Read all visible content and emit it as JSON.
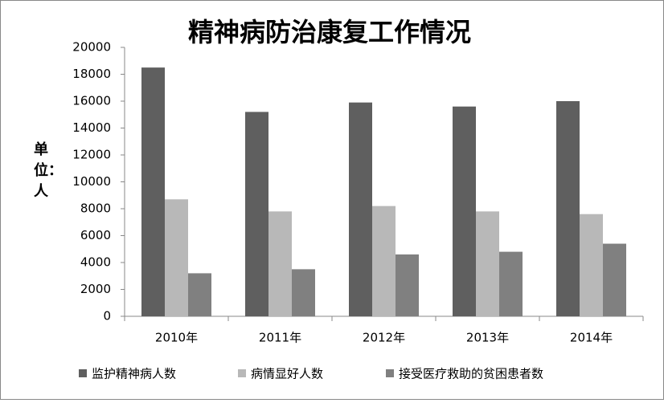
{
  "chart_data": {
    "type": "bar",
    "title": "精神病防治康复工作情况",
    "y_label": "单位：人",
    "categories": [
      "2010年",
      "2011年",
      "2012年",
      "2013年",
      "2014年"
    ],
    "series": [
      {
        "name": "监护精神病人数",
        "color": "#5f5f5f",
        "values": [
          18500,
          15200,
          15900,
          15600,
          16000
        ]
      },
      {
        "name": "病情显好人数",
        "color": "#b8b8b8",
        "values": [
          8700,
          7800,
          8200,
          7800,
          7600
        ]
      },
      {
        "name": "接受医疗救助的贫困患者数",
        "color": "#808080",
        "values": [
          3200,
          3500,
          4600,
          4800,
          5400
        ]
      }
    ],
    "ylim": [
      0,
      20000
    ],
    "yticks": [
      0,
      2000,
      4000,
      6000,
      8000,
      10000,
      12000,
      14000,
      16000,
      18000,
      20000
    ],
    "legend": "bottom"
  }
}
